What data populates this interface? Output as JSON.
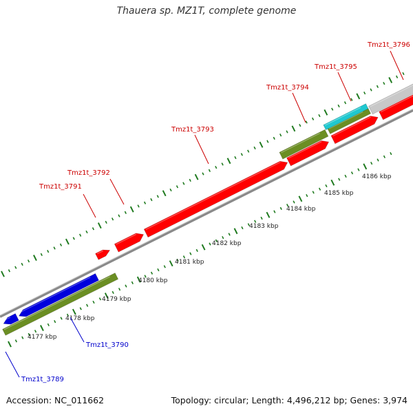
{
  "map": {
    "title": "Thauera sp. MZ1T, complete genome",
    "accession": "Accession: NC_011662",
    "summary": "Topology: circular; Length: 4,496,212 bp; Genes: 3,974"
  },
  "colors": {
    "forward_cds": "#ff0000",
    "reverse_cds": "#0000dd",
    "forward_label": "#cc0000",
    "reverse_label": "#0000cc",
    "olive": "#6b8e23",
    "cyan": "#1fc8d0",
    "gray": "#c8c8c8",
    "backbone": "#8a8a8a",
    "tick": "#1f7a1f"
  },
  "scale_labels": [
    "4177 kbp",
    "4178 kbp",
    "4179 kbp",
    "4180 kbp",
    "4181 kbp",
    "4182 kbp",
    "4183 kbp",
    "4184 kbp",
    "4185 kbp",
    "4186 kbp"
  ],
  "gene_labels": [
    {
      "text": "Tmz1t_3791",
      "strand": "forward"
    },
    {
      "text": "Tmz1t_3792",
      "strand": "forward"
    },
    {
      "text": "Tmz1t_3793",
      "strand": "forward"
    },
    {
      "text": "Tmz1t_3794",
      "strand": "forward"
    },
    {
      "text": "Tmz1t_3795",
      "strand": "forward"
    },
    {
      "text": "Tmz1t_3796",
      "strand": "forward"
    },
    {
      "text": "Tmz1t_3789",
      "strand": "reverse"
    },
    {
      "text": "Tmz1t_3790",
      "strand": "reverse"
    }
  ]
}
